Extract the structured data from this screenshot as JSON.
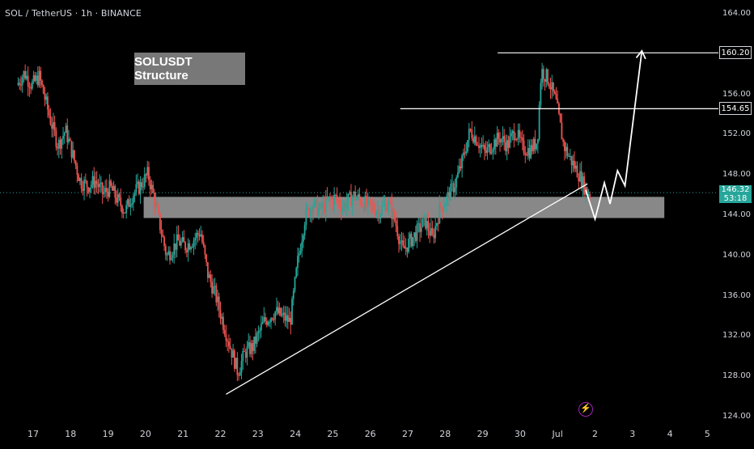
{
  "header": {
    "symbol": "SOL / TetherUS · 1h · BINANCE"
  },
  "annotation": {
    "label": "SOLUSDT Structure"
  },
  "colors": {
    "up": "#26a69a",
    "down": "#ef5350",
    "support_zone": "#bdbdbd",
    "lines": "#ffffff",
    "current_price_bg": "#26a69a",
    "event_icon": "#9c27b0"
  },
  "chart_data": {
    "type": "candlestick",
    "title": "SOLUSDT Structure",
    "symbol": "SOL / TetherUS",
    "interval": "1h",
    "exchange": "BINANCE",
    "ylim": [
      124,
      164
    ],
    "y_ticks": [
      "164.00",
      "160.00",
      "156.00",
      "152.00",
      "148.00",
      "144.00",
      "140.00",
      "136.00",
      "132.00",
      "128.00",
      "124.00"
    ],
    "x_ticks": [
      "17",
      "18",
      "19",
      "20",
      "21",
      "22",
      "23",
      "24",
      "25",
      "26",
      "27",
      "28",
      "29",
      "30",
      "Jul",
      "2",
      "3",
      "4",
      "5"
    ],
    "price_path": [
      [
        16.6,
        157.0
      ],
      [
        16.8,
        158.2
      ],
      [
        17.0,
        157.0
      ],
      [
        17.2,
        157.8
      ],
      [
        17.3,
        156.4
      ],
      [
        17.5,
        153.5
      ],
      [
        17.7,
        151.0
      ],
      [
        17.9,
        152.5
      ],
      [
        18.1,
        150.0
      ],
      [
        18.3,
        147.4
      ],
      [
        18.5,
        147.0
      ],
      [
        18.7,
        147.5
      ],
      [
        18.9,
        146.2
      ],
      [
        19.1,
        146.8
      ],
      [
        19.3,
        145.5
      ],
      [
        19.5,
        144.5
      ],
      [
        19.7,
        146.2
      ],
      [
        19.9,
        147.0
      ],
      [
        20.1,
        148.2
      ],
      [
        20.3,
        145.2
      ],
      [
        20.6,
        140.0
      ],
      [
        20.9,
        141.5
      ],
      [
        21.1,
        141.0
      ],
      [
        21.3,
        141.6
      ],
      [
        21.5,
        142.5
      ],
      [
        21.7,
        138.2
      ],
      [
        21.9,
        136.2
      ],
      [
        22.1,
        133.5
      ],
      [
        22.3,
        131.0
      ],
      [
        22.5,
        128.5
      ],
      [
        22.7,
        130.5
      ],
      [
        22.9,
        131.0
      ],
      [
        23.2,
        133.5
      ],
      [
        23.5,
        134.5
      ],
      [
        23.7,
        134.0
      ],
      [
        23.9,
        133.5
      ],
      [
        24.1,
        139.5
      ],
      [
        24.3,
        144.0
      ],
      [
        24.5,
        145.2
      ],
      [
        24.7,
        144.5
      ],
      [
        24.9,
        145.5
      ],
      [
        25.1,
        145.8
      ],
      [
        25.3,
        145.0
      ],
      [
        25.6,
        146.0
      ],
      [
        25.8,
        145.5
      ],
      [
        26.0,
        145.0
      ],
      [
        26.3,
        144.5
      ],
      [
        26.5,
        145.4
      ],
      [
        26.7,
        143.5
      ],
      [
        26.9,
        140.5
      ],
      [
        27.1,
        141.5
      ],
      [
        27.3,
        142.5
      ],
      [
        27.5,
        143.5
      ],
      [
        27.7,
        141.8
      ],
      [
        27.9,
        144.8
      ],
      [
        28.1,
        145.8
      ],
      [
        28.3,
        147.2
      ],
      [
        28.5,
        149.5
      ],
      [
        28.7,
        152.5
      ],
      [
        28.9,
        151.5
      ],
      [
        29.1,
        150.2
      ],
      [
        29.3,
        151.2
      ],
      [
        29.5,
        151.8
      ],
      [
        29.7,
        151.0
      ],
      [
        29.9,
        152.5
      ],
      [
        30.1,
        150.8
      ],
      [
        30.3,
        150.5
      ],
      [
        30.5,
        151.5
      ],
      [
        30.6,
        158.5
      ],
      [
        30.8,
        157.5
      ],
      [
        31.0,
        155.2
      ],
      [
        31.2,
        151.0
      ],
      [
        31.4,
        149.5
      ],
      [
        31.6,
        148.2
      ],
      [
        31.8,
        146.5
      ],
      [
        31.9,
        146.3
      ]
    ],
    "current_price": "146.32",
    "countdown": "53:18",
    "levels": [
      {
        "label": "160.20",
        "value": 160.2,
        "x_from": 29.4
      },
      {
        "label": "154.65",
        "value": 154.65,
        "x_from": 26.8
      }
    ],
    "support_zone": {
      "from": 143.8,
      "to": 145.9,
      "x_from": 19.95,
      "x_to": 33.85
    },
    "trendline": {
      "from": [
        22.15,
        126.3
      ],
      "to": [
        31.8,
        147.2
      ]
    },
    "projection": [
      [
        31.75,
        146.6
      ],
      [
        32.0,
        143.7
      ],
      [
        32.25,
        147.3
      ],
      [
        32.4,
        145.2
      ],
      [
        32.6,
        148.5
      ],
      [
        32.8,
        147.0
      ],
      [
        33.25,
        160.4
      ]
    ]
  },
  "events": {
    "icon": "lightning-icon"
  }
}
